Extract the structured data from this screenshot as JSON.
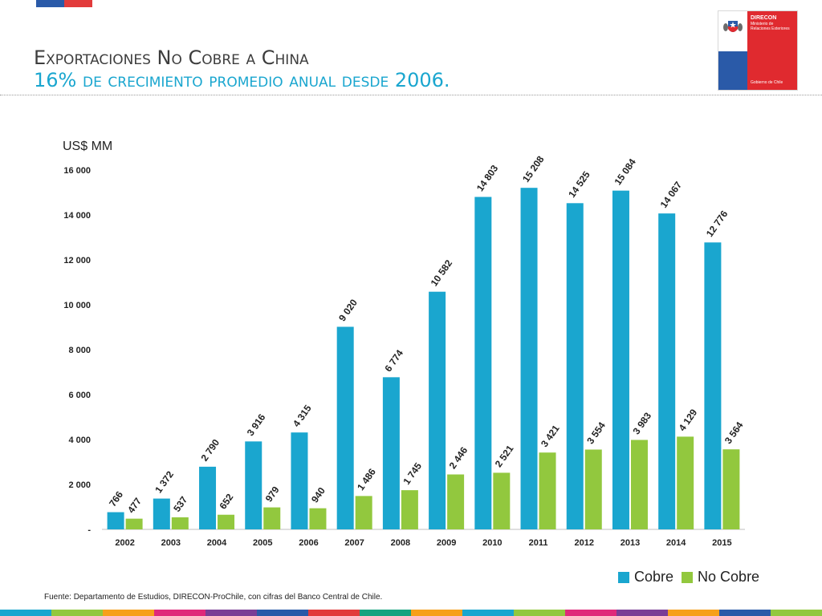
{
  "header": {
    "title": "Exportaciones No Cobre a China",
    "subtitle": "16% de crecimiento promedio anual desde 2006."
  },
  "logo": {
    "org": "DIRECON",
    "ministry": "Ministerio de Relaciones Exteriores",
    "government": "Gobierno de Chile"
  },
  "colors": {
    "cobre": "#1aa6cf",
    "no_cobre": "#92c83e",
    "stripes": [
      "#1aa6cf",
      "#92c83e",
      "#f6a01a",
      "#e0297a",
      "#7a3d96",
      "#2a5aa8",
      "#e23b3b",
      "#14a37f",
      "#f6a01a",
      "#1aa6cf",
      "#92c83e",
      "#e0297a",
      "#7a3d96",
      "#f6a01a",
      "#2a5aa8",
      "#92c83e"
    ]
  },
  "chart_data": {
    "type": "bar",
    "ylabel": "US$ MM",
    "ylim": [
      0,
      16000
    ],
    "yticks": [
      0,
      2000,
      4000,
      6000,
      8000,
      10000,
      12000,
      14000,
      16000
    ],
    "ytick_labels": [
      "-",
      "2 000",
      "4 000",
      "6 000",
      "8 000",
      "10 000",
      "12 000",
      "14 000",
      "16 000"
    ],
    "categories": [
      "2002",
      "2003",
      "2004",
      "2005",
      "2006",
      "2007",
      "2008",
      "2009",
      "2010",
      "2011",
      "2012",
      "2013",
      "2014",
      "2015"
    ],
    "series": [
      {
        "name": "Cobre",
        "values": [
          766,
          1372,
          2790,
          3916,
          4315,
          9020,
          6774,
          10582,
          14803,
          15208,
          14525,
          15084,
          14067,
          12776
        ],
        "labels": [
          "766",
          "1 372",
          "2 790",
          "3 916",
          "4 315",
          "9 020",
          "6 774",
          "10 582",
          "14 803",
          "15 208",
          "14 525",
          "15 084",
          "14 067",
          "12 776"
        ]
      },
      {
        "name": "No Cobre",
        "values": [
          477,
          537,
          652,
          979,
          940,
          1486,
          1745,
          2446,
          2521,
          3421,
          3554,
          3983,
          4129,
          3564
        ],
        "labels": [
          "477",
          "537",
          "652",
          "979",
          "940",
          "1 486",
          "1 745",
          "2 446",
          "2 521",
          "3 421",
          "3 554",
          "3 983",
          "4 129",
          "3 564"
        ]
      }
    ],
    "legend_position": "bottom-right",
    "grid": false
  },
  "source": "Fuente: Departamento de Estudios, DIRECON-ProChile, con cifras del Banco Central de Chile."
}
